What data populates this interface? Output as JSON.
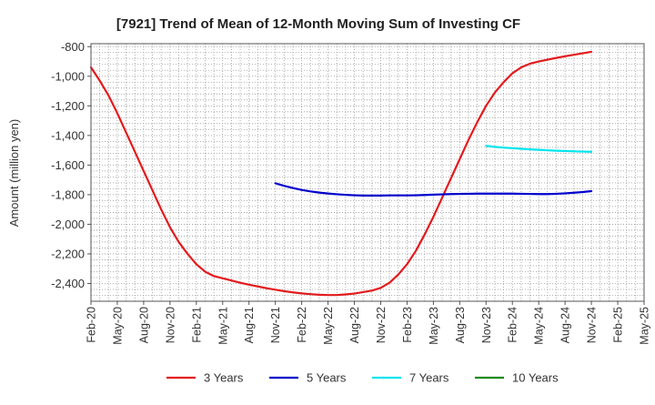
{
  "chart_data": {
    "type": "line",
    "title": "[7921]  Trend of Mean of 12-Month Moving Sum of Investing CF",
    "xlabel": "",
    "ylabel": "Amount (million yen)",
    "ylim": [
      -2520,
      -780
    ],
    "yticks": [
      -800,
      -1000,
      -1200,
      -1400,
      -1600,
      -1800,
      -2000,
      -2200,
      -2400
    ],
    "ytick_labels": [
      "-800",
      "-1,000",
      "-1,200",
      "-1,400",
      "-1,600",
      "-1,800",
      "-2,000",
      "-2,200",
      "-2,400"
    ],
    "x_range": [
      "2020-02",
      "2025-05"
    ],
    "xtick_labels": [
      "Feb-20",
      "May-20",
      "Aug-20",
      "Nov-20",
      "Feb-21",
      "May-21",
      "Aug-21",
      "Nov-21",
      "Feb-22",
      "May-22",
      "Aug-22",
      "Nov-22",
      "Feb-23",
      "May-23",
      "Aug-23",
      "Nov-23",
      "Feb-24",
      "May-24",
      "Aug-24",
      "Nov-24",
      "Feb-25",
      "May-25"
    ],
    "grid": true,
    "legend_position": "bottom",
    "series": [
      {
        "name": "3 Years",
        "color": "#e31a1c",
        "points": [
          [
            "2020-02",
            -940
          ],
          [
            "2020-03",
            -1030
          ],
          [
            "2020-04",
            -1130
          ],
          [
            "2020-05",
            -1250
          ],
          [
            "2020-06",
            -1380
          ],
          [
            "2020-07",
            -1510
          ],
          [
            "2020-08",
            -1640
          ],
          [
            "2020-09",
            -1770
          ],
          [
            "2020-10",
            -1900
          ],
          [
            "2020-11",
            -2020
          ],
          [
            "2020-12",
            -2120
          ],
          [
            "2021-01",
            -2200
          ],
          [
            "2021-02",
            -2270
          ],
          [
            "2021-03",
            -2320
          ],
          [
            "2021-04",
            -2350
          ],
          [
            "2021-05",
            -2365
          ],
          [
            "2021-06",
            -2380
          ],
          [
            "2021-07",
            -2395
          ],
          [
            "2021-08",
            -2408
          ],
          [
            "2021-09",
            -2420
          ],
          [
            "2021-10",
            -2432
          ],
          [
            "2021-11",
            -2442
          ],
          [
            "2021-12",
            -2452
          ],
          [
            "2022-01",
            -2460
          ],
          [
            "2022-02",
            -2467
          ],
          [
            "2022-03",
            -2472
          ],
          [
            "2022-04",
            -2476
          ],
          [
            "2022-05",
            -2478
          ],
          [
            "2022-06",
            -2478
          ],
          [
            "2022-07",
            -2474
          ],
          [
            "2022-08",
            -2468
          ],
          [
            "2022-09",
            -2458
          ],
          [
            "2022-10",
            -2448
          ],
          [
            "2022-11",
            -2430
          ],
          [
            "2022-12",
            -2395
          ],
          [
            "2023-01",
            -2340
          ],
          [
            "2023-02",
            -2270
          ],
          [
            "2023-03",
            -2180
          ],
          [
            "2023-04",
            -2070
          ],
          [
            "2023-05",
            -1950
          ],
          [
            "2023-06",
            -1820
          ],
          [
            "2023-07",
            -1690
          ],
          [
            "2023-08",
            -1560
          ],
          [
            "2023-09",
            -1430
          ],
          [
            "2023-10",
            -1310
          ],
          [
            "2023-11",
            -1200
          ],
          [
            "2023-12",
            -1110
          ],
          [
            "2024-01",
            -1040
          ],
          [
            "2024-02",
            -980
          ],
          [
            "2024-03",
            -940
          ],
          [
            "2024-04",
            -915
          ],
          [
            "2024-05",
            -900
          ],
          [
            "2024-06",
            -888
          ],
          [
            "2024-07",
            -876
          ],
          [
            "2024-08",
            -865
          ],
          [
            "2024-09",
            -855
          ],
          [
            "2024-10",
            -845
          ],
          [
            "2024-11",
            -835
          ]
        ]
      },
      {
        "name": "5 Years",
        "color": "#0000cc",
        "points": [
          [
            "2021-11",
            -1723
          ],
          [
            "2021-12",
            -1740
          ],
          [
            "2022-01",
            -1755
          ],
          [
            "2022-02",
            -1768
          ],
          [
            "2022-03",
            -1778
          ],
          [
            "2022-04",
            -1786
          ],
          [
            "2022-05",
            -1792
          ],
          [
            "2022-06",
            -1797
          ],
          [
            "2022-07",
            -1801
          ],
          [
            "2022-08",
            -1804
          ],
          [
            "2022-09",
            -1806
          ],
          [
            "2022-10",
            -1806
          ],
          [
            "2022-11",
            -1806
          ],
          [
            "2022-12",
            -1805
          ],
          [
            "2023-01",
            -1805
          ],
          [
            "2023-02",
            -1805
          ],
          [
            "2023-03",
            -1804
          ],
          [
            "2023-04",
            -1802
          ],
          [
            "2023-05",
            -1800
          ],
          [
            "2023-06",
            -1798
          ],
          [
            "2023-07",
            -1796
          ],
          [
            "2023-08",
            -1795
          ],
          [
            "2023-09",
            -1794
          ],
          [
            "2023-10",
            -1793
          ],
          [
            "2023-11",
            -1793
          ],
          [
            "2023-12",
            -1793
          ],
          [
            "2024-01",
            -1793
          ],
          [
            "2024-02",
            -1793
          ],
          [
            "2024-03",
            -1794
          ],
          [
            "2024-04",
            -1795
          ],
          [
            "2024-05",
            -1796
          ],
          [
            "2024-06",
            -1796
          ],
          [
            "2024-07",
            -1794
          ],
          [
            "2024-08",
            -1791
          ],
          [
            "2024-09",
            -1787
          ],
          [
            "2024-10",
            -1782
          ],
          [
            "2024-11",
            -1776
          ]
        ]
      },
      {
        "name": "7 Years",
        "color": "#00e5ee",
        "points": [
          [
            "2023-11",
            -1470
          ],
          [
            "2023-12",
            -1477
          ],
          [
            "2024-01",
            -1482
          ],
          [
            "2024-02",
            -1486
          ],
          [
            "2024-03",
            -1490
          ],
          [
            "2024-04",
            -1494
          ],
          [
            "2024-05",
            -1497
          ],
          [
            "2024-06",
            -1500
          ],
          [
            "2024-07",
            -1503
          ],
          [
            "2024-08",
            -1505
          ],
          [
            "2024-09",
            -1507
          ],
          [
            "2024-10",
            -1509
          ],
          [
            "2024-11",
            -1510
          ]
        ]
      },
      {
        "name": "10 Years",
        "color": "#1a8a1a",
        "points": []
      }
    ]
  }
}
